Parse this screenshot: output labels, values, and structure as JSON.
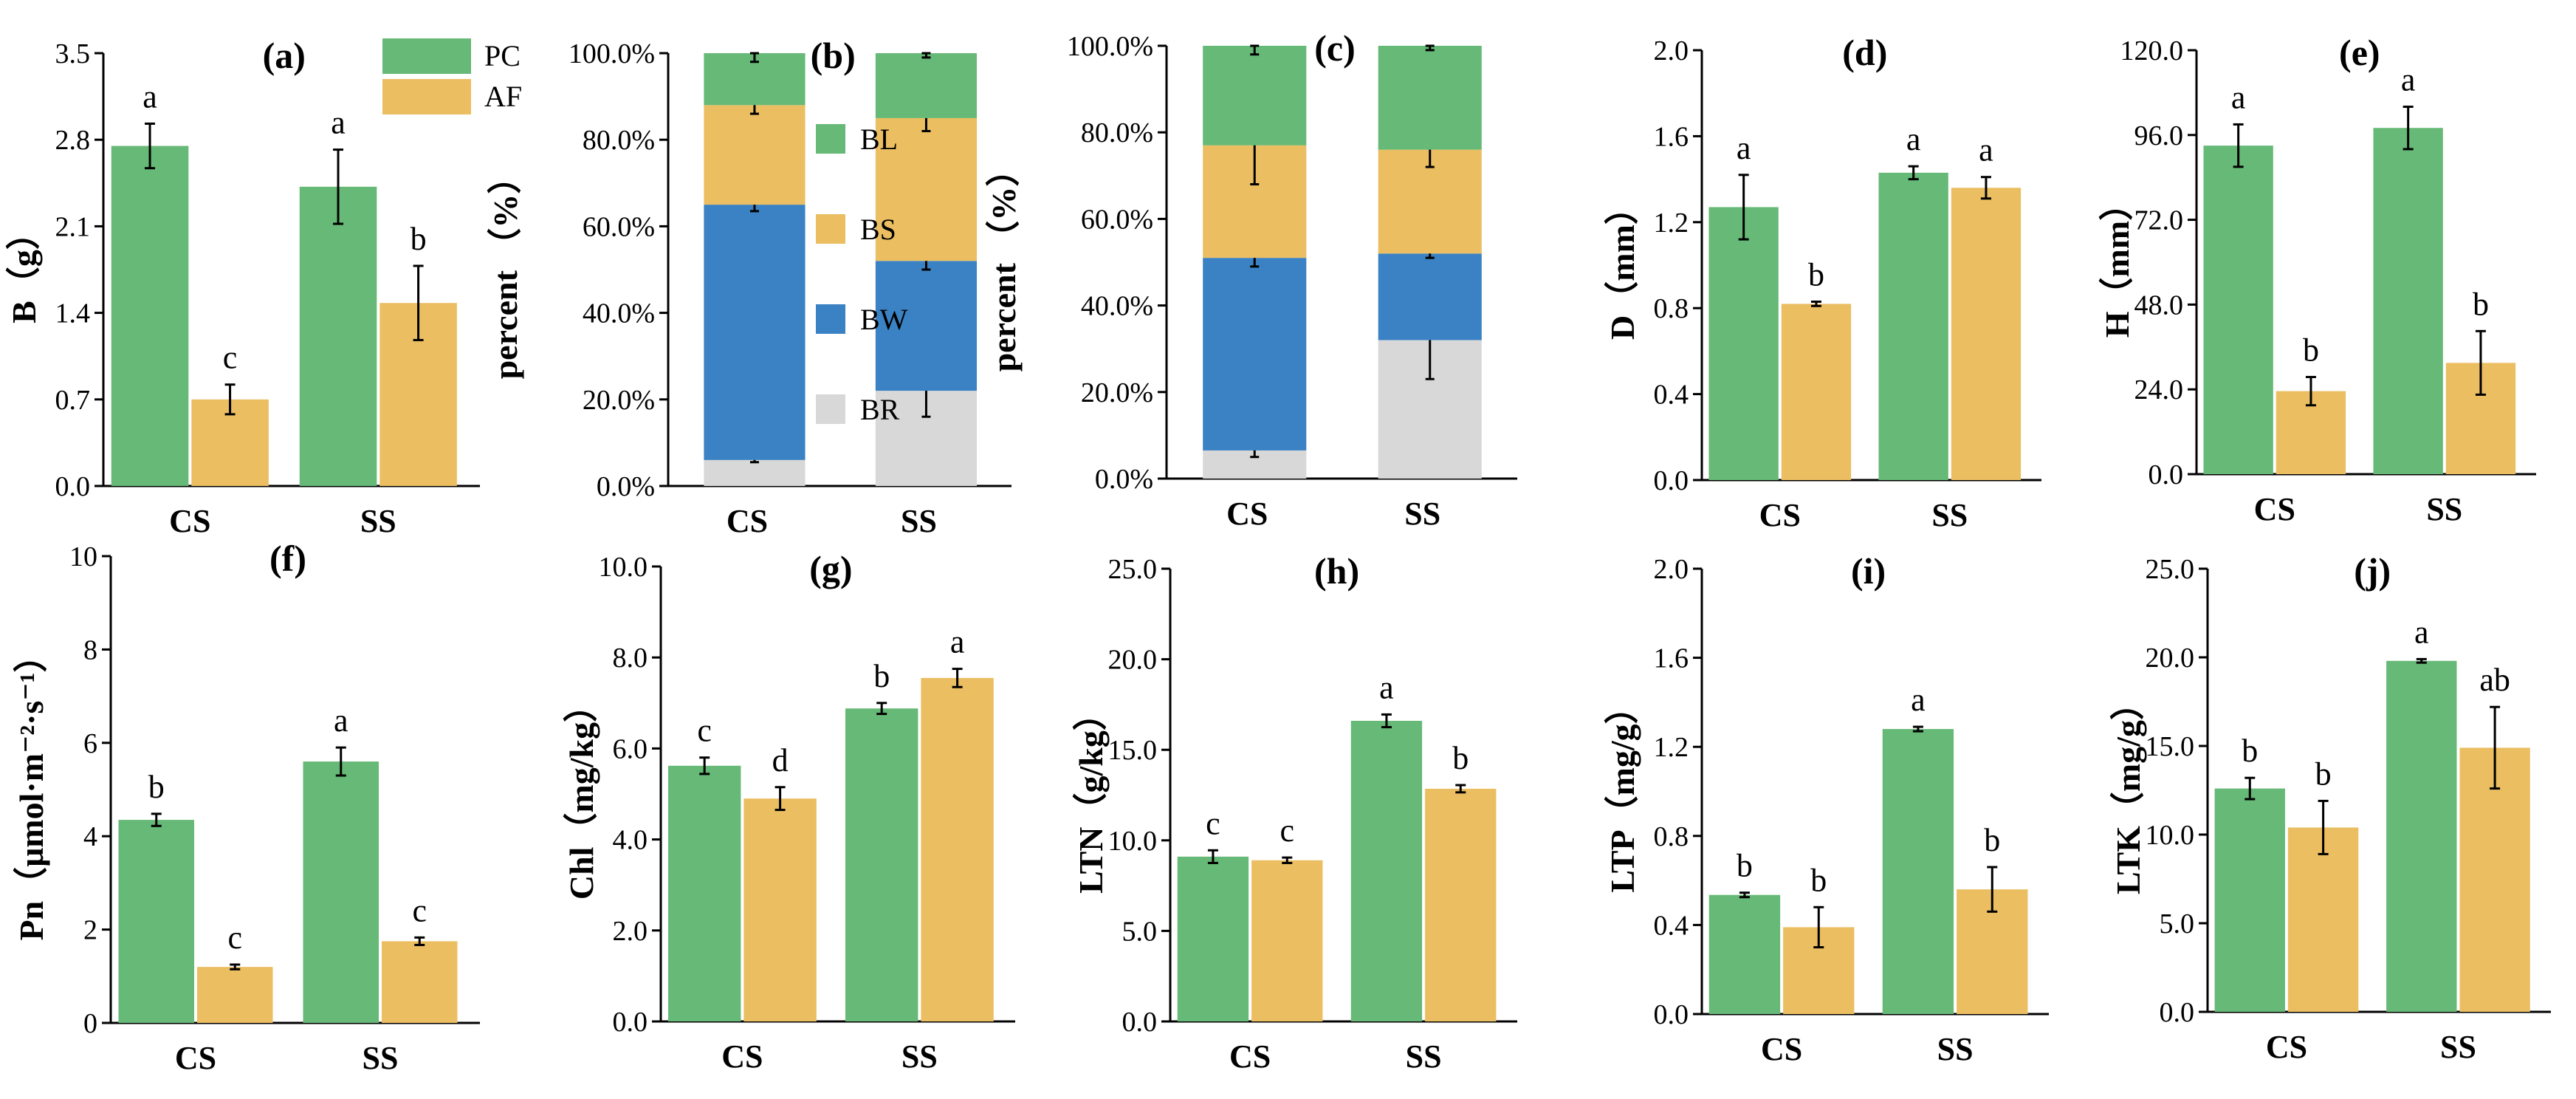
{
  "colors": {
    "PC": "#66b976",
    "AF": "#ebbe62",
    "BL": "#66b976",
    "BS": "#ebbe62",
    "BW": "#3b82c4",
    "BR": "#d8d8d8",
    "axis": "#000000",
    "error": "#000000"
  },
  "chart_data": [
    {
      "id": "a",
      "type": "bar",
      "panel_label": "(a)",
      "ylabel": "B（g）",
      "categories": [
        "CS",
        "SS"
      ],
      "ylim": [
        0,
        3.5
      ],
      "ticks": [
        "0.0",
        "0.7",
        "1.4",
        "2.1",
        "2.8",
        "3.5"
      ],
      "tick_values": [
        0,
        0.7,
        1.4,
        2.1,
        2.8,
        3.5
      ],
      "series": [
        {
          "name": "PC",
          "values": [
            2.75,
            2.42
          ],
          "errors": [
            0.18,
            0.3
          ],
          "letters": [
            "a",
            "a"
          ]
        },
        {
          "name": "AF",
          "values": [
            0.7,
            1.48
          ],
          "errors": [
            0.12,
            0.3
          ],
          "letters": [
            "c",
            "b"
          ]
        }
      ],
      "legend": {
        "entries": [
          "PC",
          "AF"
        ],
        "position": "top-right"
      }
    },
    {
      "id": "b",
      "type": "stacked-bar",
      "panel_label": "(b)",
      "ylabel": "percent （%）",
      "categories": [
        "CS",
        "SS"
      ],
      "ylim": [
        0,
        100
      ],
      "ticks": [
        "0.0%",
        "20.0%",
        "40.0%",
        "60.0%",
        "80.0%",
        "100.0%"
      ],
      "tick_values": [
        0,
        20,
        40,
        60,
        80,
        100
      ],
      "stack_order": [
        "BR",
        "BW",
        "BS",
        "BL"
      ],
      "stacks": {
        "BR": {
          "values": [
            6,
            22
          ],
          "errors": [
            0.5,
            6
          ]
        },
        "BW": {
          "values": [
            59,
            30
          ],
          "errors": [
            1.5,
            2
          ]
        },
        "BS": {
          "values": [
            23,
            33
          ],
          "errors": [
            2,
            3
          ]
        },
        "BL": {
          "values": [
            12,
            15
          ],
          "errors": [
            2,
            1
          ]
        }
      },
      "legend": {
        "entries": [
          "BL",
          "BS",
          "BW",
          "BR"
        ],
        "position": "right"
      }
    },
    {
      "id": "c",
      "type": "stacked-bar",
      "panel_label": "(c)",
      "ylabel": "percent （%）",
      "categories": [
        "CS",
        "SS"
      ],
      "ylim": [
        0,
        100
      ],
      "ticks": [
        "0.0%",
        "20.0%",
        "40.0%",
        "60.0%",
        "80.0%",
        "100.0%"
      ],
      "tick_values": [
        0,
        20,
        40,
        60,
        80,
        100
      ],
      "stack_order": [
        "BR",
        "BW",
        "BS",
        "BL"
      ],
      "stacks": {
        "BR": {
          "values": [
            6.5,
            32
          ],
          "errors": [
            1.5,
            9
          ]
        },
        "BW": {
          "values": [
            44.5,
            20
          ],
          "errors": [
            2,
            1
          ]
        },
        "BS": {
          "values": [
            26,
            24
          ],
          "errors": [
            9,
            4
          ]
        },
        "BL": {
          "values": [
            23,
            24
          ],
          "errors": [
            2,
            1
          ]
        }
      }
    },
    {
      "id": "d",
      "type": "bar",
      "panel_label": "(d)",
      "ylabel": "D（mm）",
      "categories": [
        "CS",
        "SS"
      ],
      "ylim": [
        0,
        2.0
      ],
      "ticks": [
        "0.0",
        "0.4",
        "0.8",
        "1.2",
        "1.6",
        "2.0"
      ],
      "tick_values": [
        0,
        0.4,
        0.8,
        1.2,
        1.6,
        2.0
      ],
      "series": [
        {
          "name": "PC",
          "values": [
            1.27,
            1.43
          ],
          "errors": [
            0.15,
            0.03
          ],
          "letters": [
            "a",
            "a"
          ]
        },
        {
          "name": "AF",
          "values": [
            0.82,
            1.36
          ],
          "errors": [
            0.01,
            0.05
          ],
          "letters": [
            "b",
            "a"
          ]
        }
      ]
    },
    {
      "id": "e",
      "type": "bar",
      "panel_label": "(e)",
      "ylabel": "H（mm）",
      "categories": [
        "CS",
        "SS"
      ],
      "ylim": [
        0,
        120
      ],
      "ticks": [
        "0.0",
        "24.0",
        "48.0",
        "72.0",
        "96.0",
        "120.0"
      ],
      "tick_values": [
        0,
        24,
        48,
        72,
        96,
        120
      ],
      "series": [
        {
          "name": "PC",
          "values": [
            93,
            98
          ],
          "errors": [
            6,
            6
          ],
          "letters": [
            "a",
            "a"
          ]
        },
        {
          "name": "AF",
          "values": [
            23.5,
            31.5
          ],
          "errors": [
            4,
            9
          ],
          "letters": [
            "b",
            "b"
          ]
        }
      ]
    },
    {
      "id": "f",
      "type": "bar",
      "panel_label": "(f)",
      "ylabel": "Pn（μmol·m⁻²·s⁻¹）",
      "categories": [
        "CS",
        "SS"
      ],
      "ylim": [
        0,
        10
      ],
      "ticks": [
        "0",
        "2",
        "4",
        "6",
        "8",
        "10"
      ],
      "tick_values": [
        0,
        2,
        4,
        6,
        8,
        10
      ],
      "series": [
        {
          "name": "PC",
          "values": [
            4.35,
            5.6
          ],
          "errors": [
            0.13,
            0.3
          ],
          "letters": [
            "b",
            "a"
          ]
        },
        {
          "name": "AF",
          "values": [
            1.2,
            1.75
          ],
          "errors": [
            0.05,
            0.08
          ],
          "letters": [
            "c",
            "c"
          ]
        }
      ]
    },
    {
      "id": "g",
      "type": "bar",
      "panel_label": "(g)",
      "ylabel": "Chl（mg/kg）",
      "categories": [
        "CS",
        "SS"
      ],
      "ylim": [
        0,
        10
      ],
      "ticks": [
        "0.0",
        "2.0",
        "4.0",
        "6.0",
        "8.0",
        "10.0"
      ],
      "tick_values": [
        0,
        2,
        4,
        6,
        8,
        10
      ],
      "series": [
        {
          "name": "PC",
          "values": [
            5.62,
            6.88
          ],
          "errors": [
            0.18,
            0.12
          ],
          "letters": [
            "c",
            "b"
          ]
        },
        {
          "name": "AF",
          "values": [
            4.9,
            7.55
          ],
          "errors": [
            0.25,
            0.2
          ],
          "letters": [
            "d",
            "a"
          ]
        }
      ]
    },
    {
      "id": "h",
      "type": "bar",
      "panel_label": "(h)",
      "ylabel": "LTN（g/kg）",
      "categories": [
        "CS",
        "SS"
      ],
      "ylim": [
        0,
        25
      ],
      "ticks": [
        "0.0",
        "5.0",
        "10.0",
        "15.0",
        "20.0",
        "25.0"
      ],
      "tick_values": [
        0,
        5,
        10,
        15,
        20,
        25
      ],
      "series": [
        {
          "name": "PC",
          "values": [
            9.1,
            16.6
          ],
          "errors": [
            0.35,
            0.35
          ],
          "letters": [
            "c",
            "a"
          ]
        },
        {
          "name": "AF",
          "values": [
            8.9,
            12.85
          ],
          "errors": [
            0.15,
            0.2
          ],
          "letters": [
            "c",
            "b"
          ]
        }
      ]
    },
    {
      "id": "i",
      "type": "bar",
      "panel_label": "(i)",
      "ylabel": "LTP（mg/g）",
      "categories": [
        "CS",
        "SS"
      ],
      "ylim": [
        0,
        2.0
      ],
      "ticks": [
        "0.0",
        "0.4",
        "0.8",
        "1.2",
        "1.6",
        "2.0"
      ],
      "tick_values": [
        0,
        0.4,
        0.8,
        1.2,
        1.6,
        2.0
      ],
      "series": [
        {
          "name": "PC",
          "values": [
            0.535,
            1.28
          ],
          "errors": [
            0.01,
            0.01
          ],
          "letters": [
            "b",
            "a"
          ]
        },
        {
          "name": "AF",
          "values": [
            0.39,
            0.56
          ],
          "errors": [
            0.09,
            0.1
          ],
          "letters": [
            "b",
            "b"
          ]
        }
      ]
    },
    {
      "id": "j",
      "type": "bar",
      "panel_label": "(j)",
      "ylabel": "LTK（mg/g）",
      "categories": [
        "CS",
        "SS"
      ],
      "ylim": [
        0,
        25
      ],
      "ticks": [
        "0.0",
        "5.0",
        "10.0",
        "15.0",
        "20.0",
        "25.0"
      ],
      "tick_values": [
        0,
        5,
        10,
        15,
        20,
        25
      ],
      "series": [
        {
          "name": "PC",
          "values": [
            12.6,
            19.8
          ],
          "errors": [
            0.6,
            0.1
          ],
          "letters": [
            "b",
            "a"
          ]
        },
        {
          "name": "AF",
          "values": [
            10.4,
            14.9
          ],
          "errors": [
            1.5,
            2.3
          ],
          "letters": [
            "b",
            "ab"
          ]
        }
      ]
    }
  ]
}
